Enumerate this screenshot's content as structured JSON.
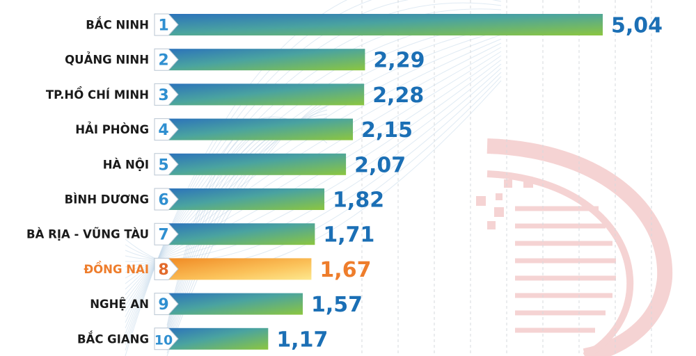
{
  "chart_data": {
    "type": "bar",
    "orientation": "horizontal",
    "categories": [
      "BẮC NINH",
      "QUẢNG NINH",
      "TP.HỒ CHÍ MINH",
      "HẢI PHÒNG",
      "HÀ NỘI",
      "BÌNH DƯƠNG",
      "BÀ RỊA - VŨNG TÀU",
      "ĐỒNG NAI",
      "NGHỆ AN",
      "BẮC GIANG"
    ],
    "ranks": [
      "1",
      "2",
      "3",
      "4",
      "5",
      "6",
      "7",
      "8",
      "9",
      "10"
    ],
    "values": [
      5.04,
      2.29,
      2.28,
      2.15,
      2.07,
      1.82,
      1.71,
      1.67,
      1.57,
      1.17
    ],
    "value_labels": [
      "5,04",
      "2,29",
      "2,28",
      "2,15",
      "2,07",
      "1,82",
      "1,71",
      "1,67",
      "1,57",
      "1,17"
    ],
    "highlight_index": 7,
    "xlim": [
      0,
      5.04
    ],
    "grid": true,
    "title": "",
    "xlabel": "",
    "ylabel": ""
  },
  "colors": {
    "label_text": "#1a1a1a",
    "value_text": "#1b6fb5",
    "bar_blue": "#2b72bb",
    "bar_green": "#8cc63f",
    "highlight_text": "#ee7d2c",
    "highlight_bar_start": "#f08a24",
    "highlight_bar_end": "#fde88e",
    "rank_badge": "#ffffff",
    "rank_text": "#2f8fd0",
    "highlight_rank_text": "#e26a2b",
    "watermark": "#d63a3a"
  }
}
